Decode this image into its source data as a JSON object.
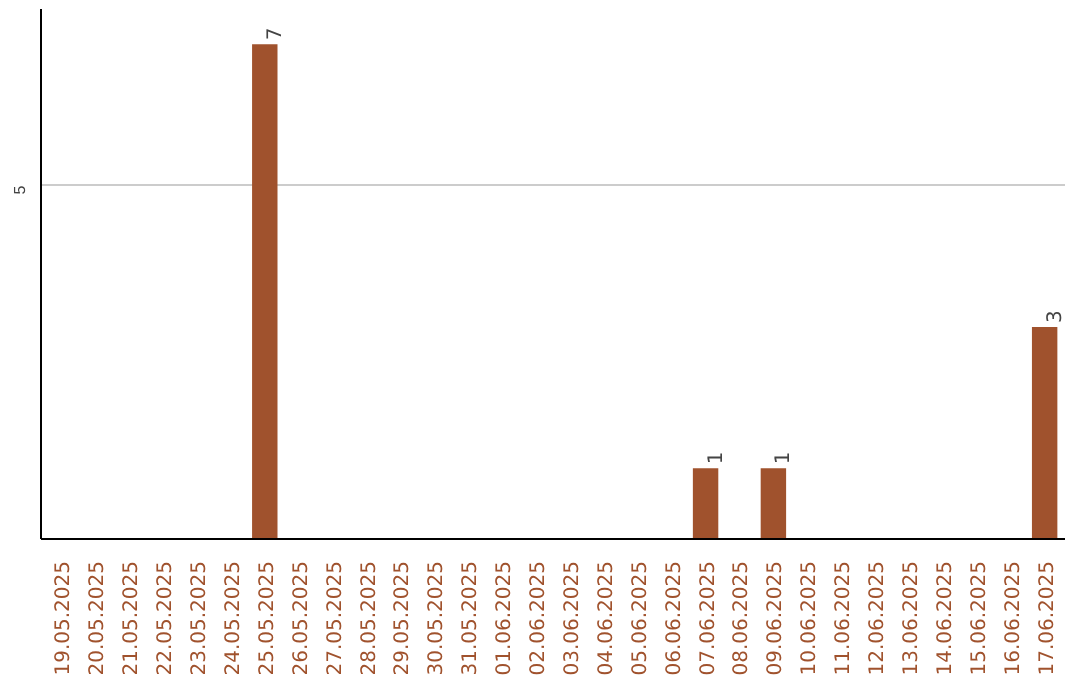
{
  "chart_data": {
    "type": "bar",
    "categories": [
      "19.05.2025",
      "20.05.2025",
      "21.05.2025",
      "22.05.2025",
      "23.05.2025",
      "24.05.2025",
      "25.05.2025",
      "26.05.2025",
      "27.05.2025",
      "28.05.2025",
      "29.05.2025",
      "30.05.2025",
      "31.05.2025",
      "01.06.2025",
      "02.06.2025",
      "03.06.2025",
      "04.06.2025",
      "05.06.2025",
      "06.06.2025",
      "07.06.2025",
      "08.06.2025",
      "09.06.2025",
      "10.06.2025",
      "11.06.2025",
      "12.06.2025",
      "13.06.2025",
      "14.06.2025",
      "15.06.2025",
      "16.06.2025",
      "17.06.2025"
    ],
    "values": [
      0,
      0,
      0,
      0,
      0,
      0,
      7,
      0,
      0,
      0,
      0,
      0,
      0,
      0,
      0,
      0,
      0,
      0,
      0,
      1,
      0,
      1,
      0,
      0,
      0,
      0,
      0,
      0,
      0,
      3
    ],
    "value_labels": [
      null,
      null,
      null,
      null,
      null,
      null,
      "7",
      null,
      null,
      null,
      null,
      null,
      null,
      null,
      null,
      null,
      null,
      null,
      null,
      "1",
      null,
      "1",
      null,
      null,
      null,
      null,
      null,
      null,
      null,
      "3"
    ],
    "color": "#a0522d",
    "ylim": [
      0,
      7.5
    ],
    "yticks": [
      5
    ],
    "grid": "y"
  }
}
